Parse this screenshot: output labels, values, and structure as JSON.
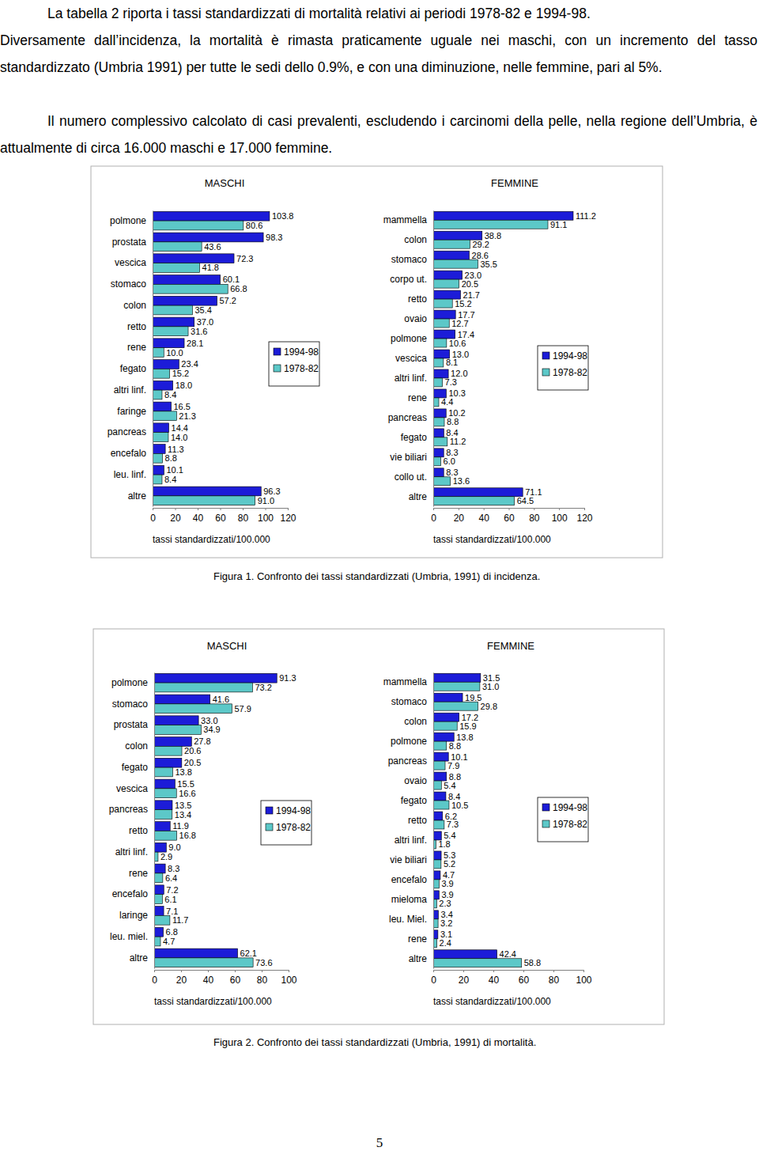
{
  "document": {
    "paragraphs": [
      "La tabella 2 riporta i tassi standardizzati di mortalità relativi ai periodi 1978-82 e 1994-98.",
      "Diversamente dall’incidenza, la mortalità è rimasta praticamente uguale nei maschi, con un incremento del tasso standardizzato (Umbria 1991) per tutte le sedi dello 0.9%, e con una diminuzione, nelle femmine, pari al 5%.",
      "Il numero complessivo calcolato di casi prevalenti, escludendo i carcinomi della pelle, nella regione dell’Umbria, è attualmente di circa 16.000 maschi e 17.000 femmine."
    ],
    "figures": [
      {
        "caption": "Figura 1. Confronto dei tassi standardizzati (Umbria, 1991) di incidenza."
      },
      {
        "caption": "Figura 2. Confronto dei tassi standardizzati (Umbria, 1991) di mortalità."
      }
    ],
    "page_number": "5"
  },
  "chart_data": [
    {
      "type": "bar",
      "orientation": "horizontal",
      "title": "MASCHI",
      "xlabel": "tassi standardizzati/100.000",
      "categories": [
        "polmone",
        "prostata",
        "vescica",
        "stomaco",
        "colon",
        "retto",
        "rene",
        "fegato",
        "altri linf.",
        "faringe",
        "pancreas",
        "encefalo",
        "leu. linf.",
        "altre"
      ],
      "series": [
        {
          "name": "1994-98",
          "color": "#1c1cd8",
          "values": [
            103.8,
            98.3,
            72.3,
            60.1,
            57.2,
            37.0,
            28.1,
            23.4,
            18.0,
            16.5,
            14.4,
            11.3,
            10.1,
            96.3
          ],
          "value_labels": [
            "103.8",
            "98.3",
            "72.3",
            "60.1",
            "57.2",
            "37.0",
            "28.1",
            "23.4",
            "18.0",
            "16.5",
            "14.4",
            "11.3",
            "10.1",
            "96.3"
          ]
        },
        {
          "name": "1978-82",
          "color": "#5cc8c8",
          "values": [
            80.6,
            43.6,
            41.8,
            66.8,
            35.4,
            31.6,
            10.0,
            15.2,
            8.4,
            21.3,
            14.0,
            8.8,
            8.4,
            91.0
          ],
          "value_labels": [
            "80.6",
            "43.6",
            "41.8",
            "66.8",
            "35.4",
            "31.6",
            "10.0",
            "15.2",
            "8.4",
            "21.3",
            "14.0",
            "8.8",
            "8.4",
            "91.0"
          ]
        }
      ],
      "xlim": [
        0,
        120
      ],
      "xticks": [
        0,
        20,
        40,
        60,
        80,
        100,
        120
      ],
      "data_labels": true,
      "legend": "right",
      "grid": false
    },
    {
      "type": "bar",
      "orientation": "horizontal",
      "title": "FEMMINE",
      "xlabel": "tassi standardizzati/100.000",
      "categories": [
        "mammella",
        "colon",
        "stomaco",
        "corpo ut.",
        "retto",
        "ovaio",
        "polmone",
        "vescica",
        "altri linf.",
        "rene",
        "pancreas",
        "fegato",
        "vie biliari",
        "collo ut.",
        "altre"
      ],
      "series": [
        {
          "name": "1994-98",
          "color": "#1c1cd8",
          "values": [
            111.2,
            38.8,
            28.6,
            23.0,
            21.7,
            17.7,
            17.4,
            13.0,
            12.0,
            10.3,
            10.2,
            8.4,
            8.3,
            8.3,
            71.1
          ],
          "value_labels": [
            "111.2",
            "38.8",
            "28.6",
            "23.0",
            "21.7",
            "17.7",
            "17.4",
            "13.0",
            "12.0",
            "10.3",
            "10.2",
            "8.4",
            "8.3",
            "8.3",
            "71.1"
          ]
        },
        {
          "name": "1978-82",
          "color": "#5cc8c8",
          "values": [
            91.1,
            29.2,
            35.5,
            20.5,
            15.2,
            12.7,
            10.6,
            8.1,
            7.3,
            4.4,
            8.8,
            11.2,
            6.0,
            13.6,
            64.5
          ],
          "value_labels": [
            "91.1",
            "29.2",
            "35.5",
            "20.5",
            "15.2",
            "12.7",
            "10.6",
            "8.1",
            "7.3",
            "4.4",
            "8.8",
            "11.2",
            "6.0",
            "13.6",
            "64.5"
          ]
        }
      ],
      "xlim": [
        0,
        120
      ],
      "xticks": [
        0,
        20,
        40,
        60,
        80,
        100,
        120
      ],
      "data_labels": true,
      "legend": "right",
      "grid": false
    },
    {
      "type": "bar",
      "orientation": "horizontal",
      "title": "MASCHI",
      "xlabel": "tassi standardizzati/100.000",
      "categories": [
        "polmone",
        "stomaco",
        "prostata",
        "colon",
        "fegato",
        "vescica",
        "pancreas",
        "retto",
        "altri linf.",
        "rene",
        "encefalo",
        "laringe",
        "leu. miel.",
        "altre"
      ],
      "series": [
        {
          "name": "1994-98",
          "color": "#1c1cd8",
          "values": [
            91.3,
            41.6,
            33.0,
            27.8,
            20.5,
            15.5,
            13.5,
            11.9,
            9.0,
            8.3,
            7.2,
            7.1,
            6.8,
            62.1
          ],
          "value_labels": [
            "91.3",
            "41.6",
            "33.0",
            "27.8",
            "20.5",
            "15.5",
            "13.5",
            "11.9",
            "9.0",
            "8.3",
            "7.2",
            "7.1",
            "6.8",
            "62.1"
          ]
        },
        {
          "name": "1978-82",
          "color": "#5cc8c8",
          "values": [
            73.2,
            57.9,
            34.9,
            20.6,
            13.8,
            16.6,
            13.4,
            16.8,
            2.9,
            6.4,
            6.1,
            11.7,
            4.7,
            73.6
          ],
          "value_labels": [
            "73.2",
            "57.9",
            "34.9",
            "20.6",
            "13.8",
            "16.6",
            "13.4",
            "16.8",
            "2.9",
            "6.4",
            "6.1",
            "11.7",
            "4.7",
            "73.6"
          ]
        }
      ],
      "xlim": [
        0,
        100
      ],
      "xticks": [
        0,
        20,
        40,
        60,
        80,
        100
      ],
      "data_labels": true,
      "legend": "right",
      "grid": false
    },
    {
      "type": "bar",
      "orientation": "horizontal",
      "title": "FEMMINE",
      "xlabel": "tassi standardizzati/100.000",
      "categories": [
        "mammella",
        "stomaco",
        "colon",
        "polmone",
        "pancreas",
        "ovaio",
        "fegato",
        "retto",
        "altri linf.",
        "vie biliari",
        "encefalo",
        "mieloma",
        "leu. Miel.",
        "rene",
        "altre"
      ],
      "series": [
        {
          "name": "1994-98",
          "color": "#1c1cd8",
          "values": [
            31.5,
            19.5,
            17.2,
            13.8,
            10.1,
            8.8,
            8.4,
            6.2,
            5.4,
            5.3,
            4.7,
            3.9,
            3.4,
            3.1,
            42.4
          ],
          "value_labels": [
            "31.5",
            "19.5",
            "17.2",
            "13.8",
            "10.1",
            "8.8",
            "8.4",
            "6.2",
            "5.4",
            "5.3",
            "4.7",
            "3.9",
            "3.4",
            "3.1",
            "42.4"
          ]
        },
        {
          "name": "1978-82",
          "color": "#5cc8c8",
          "values": [
            31.0,
            29.8,
            15.9,
            8.8,
            7.9,
            5.4,
            10.5,
            7.3,
            1.8,
            5.2,
            3.9,
            2.3,
            3.2,
            2.4,
            58.8
          ],
          "value_labels": [
            "31.0",
            "29.8",
            "15.9",
            "8.8",
            "7.9",
            "5.4",
            "10.5",
            "7.3",
            "1.8",
            "5.2",
            "3.9",
            "2.3",
            "3.2",
            "2.4",
            "58.8"
          ]
        }
      ],
      "xlim": [
        0,
        100
      ],
      "xticks": [
        0,
        20,
        40,
        60,
        80,
        100
      ],
      "data_labels": true,
      "legend": "right",
      "grid": false
    }
  ]
}
